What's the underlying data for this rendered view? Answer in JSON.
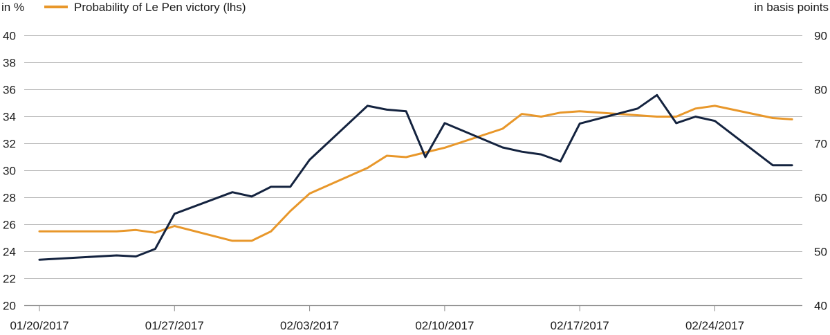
{
  "chart_data": {
    "type": "line",
    "left_axis_label": "in %",
    "right_axis_label": "in basis points",
    "legend_entry": "Probability of Le Pen victory (lhs)",
    "legend_position": "top-left",
    "grid": true,
    "y_left": {
      "min": 20,
      "max": 40,
      "ticks": [
        "20",
        "22",
        "24",
        "26",
        "28",
        "30",
        "32",
        "34",
        "36",
        "38",
        "40"
      ]
    },
    "y_right": {
      "min": 40,
      "max": 90,
      "ticks": [
        "40",
        "50",
        "60",
        "70",
        "80",
        "90"
      ]
    },
    "x_labels": [
      "01/20/2017",
      "01/27/2017",
      "02/03/2017",
      "02/10/2017",
      "02/17/2017",
      "02/24/2017"
    ],
    "series": [
      {
        "name": "Probability of Le Pen victory (lhs)",
        "axis": "left",
        "color": "#e8972a",
        "points": [
          [
            "2017-01-20",
            25.5
          ],
          [
            "2017-01-22",
            25.5
          ],
          [
            "2017-01-23",
            25.5
          ],
          [
            "2017-01-24",
            25.5
          ],
          [
            "2017-01-25",
            25.6
          ],
          [
            "2017-01-26",
            25.4
          ],
          [
            "2017-01-27",
            25.9
          ],
          [
            "2017-01-30",
            24.8
          ],
          [
            "2017-01-31",
            24.8
          ],
          [
            "2017-02-01",
            25.5
          ],
          [
            "2017-02-02",
            27.0
          ],
          [
            "2017-02-03",
            28.3
          ],
          [
            "2017-02-06",
            30.2
          ],
          [
            "2017-02-07",
            31.1
          ],
          [
            "2017-02-08",
            31.0
          ],
          [
            "2017-02-10",
            31.7
          ],
          [
            "2017-02-13",
            33.1
          ],
          [
            "2017-02-14",
            34.2
          ],
          [
            "2017-02-15",
            34.0
          ],
          [
            "2017-02-16",
            34.3
          ],
          [
            "2017-02-17",
            34.4
          ],
          [
            "2017-02-21",
            34.0
          ],
          [
            "2017-02-22",
            34.0
          ],
          [
            "2017-02-23",
            34.6
          ],
          [
            "2017-02-24",
            34.8
          ],
          [
            "2017-02-27",
            33.9
          ],
          [
            "2017-02-28",
            33.8
          ]
        ]
      },
      {
        "axis": "right",
        "color": "#14233f",
        "points": [
          [
            "2017-01-20",
            48.5
          ],
          [
            "2017-01-24",
            49.3
          ],
          [
            "2017-01-25",
            49.1
          ],
          [
            "2017-01-26",
            50.5
          ],
          [
            "2017-01-27",
            57.0
          ],
          [
            "2017-01-30",
            61.0
          ],
          [
            "2017-01-31",
            60.2
          ],
          [
            "2017-02-01",
            62.0
          ],
          [
            "2017-02-02",
            62.0
          ],
          [
            "2017-02-03",
            67.0
          ],
          [
            "2017-02-06",
            77.0
          ],
          [
            "2017-02-07",
            76.3
          ],
          [
            "2017-02-08",
            76.0
          ],
          [
            "2017-02-09",
            67.5
          ],
          [
            "2017-02-10",
            73.8
          ],
          [
            "2017-02-13",
            69.3
          ],
          [
            "2017-02-14",
            68.5
          ],
          [
            "2017-02-15",
            68.0
          ],
          [
            "2017-02-16",
            66.7
          ],
          [
            "2017-02-17",
            73.7
          ],
          [
            "2017-02-20",
            76.5
          ],
          [
            "2017-02-21",
            79.0
          ],
          [
            "2017-02-22",
            73.8
          ],
          [
            "2017-02-23",
            75.0
          ],
          [
            "2017-02-24",
            74.2
          ],
          [
            "2017-02-27",
            66.0
          ],
          [
            "2017-02-28",
            66.0
          ]
        ]
      }
    ]
  }
}
